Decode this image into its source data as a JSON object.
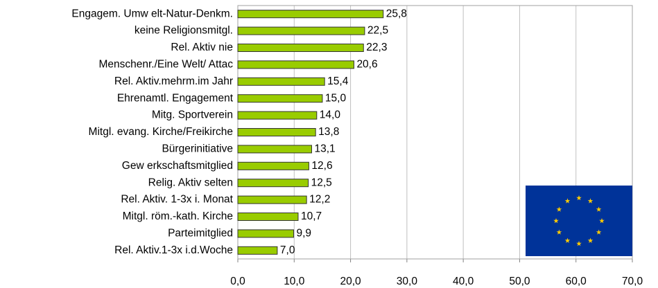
{
  "chart_data": {
    "type": "bar",
    "orientation": "horizontal",
    "categories": [
      "Engagem. Umw elt-Natur-Denkm.",
      "keine Religionsmitgl.",
      "Rel. Aktiv nie",
      "Menschenr./Eine Welt/ Attac",
      "Rel. Aktiv.mehrm.im Jahr",
      "Ehrenamtl. Engagement",
      "Mitg. Sportverein",
      "Mitgl. evang. Kirche/Freikirche",
      "Bürgerinitiative",
      "Gew erkschaftsmitglied",
      "Relig. Aktiv selten",
      "Rel. Aktiv. 1-3x i. Monat",
      "Mitgl. röm.-kath. Kirche",
      "Parteimitglied",
      "Rel. Aktiv.1-3x i.d.Woche"
    ],
    "values": [
      25.8,
      22.5,
      22.3,
      20.6,
      15.4,
      15.0,
      14.0,
      13.8,
      13.1,
      12.6,
      12.5,
      12.2,
      10.7,
      9.9,
      7.0
    ],
    "value_labels": [
      "25,8",
      "22,5",
      "22,3",
      "20,6",
      "15,4",
      "15,0",
      "14,0",
      "13,8",
      "13,1",
      "12,6",
      "12,5",
      "12,2",
      "10,7",
      "9,9",
      "7,0"
    ],
    "color": "#99cc00",
    "xlim": [
      0,
      70
    ],
    "xticks": [
      {
        "value": 0,
        "label": "0,0"
      },
      {
        "value": 10,
        "label": "10,0"
      },
      {
        "value": 20,
        "label": "20,0"
      },
      {
        "value": 30,
        "label": "30,0"
      },
      {
        "value": 40,
        "label": "40,0"
      },
      {
        "value": 50,
        "label": "50,0"
      },
      {
        "value": 60,
        "label": "60,0"
      },
      {
        "value": 70,
        "label": "70,0"
      }
    ],
    "grid": true
  }
}
